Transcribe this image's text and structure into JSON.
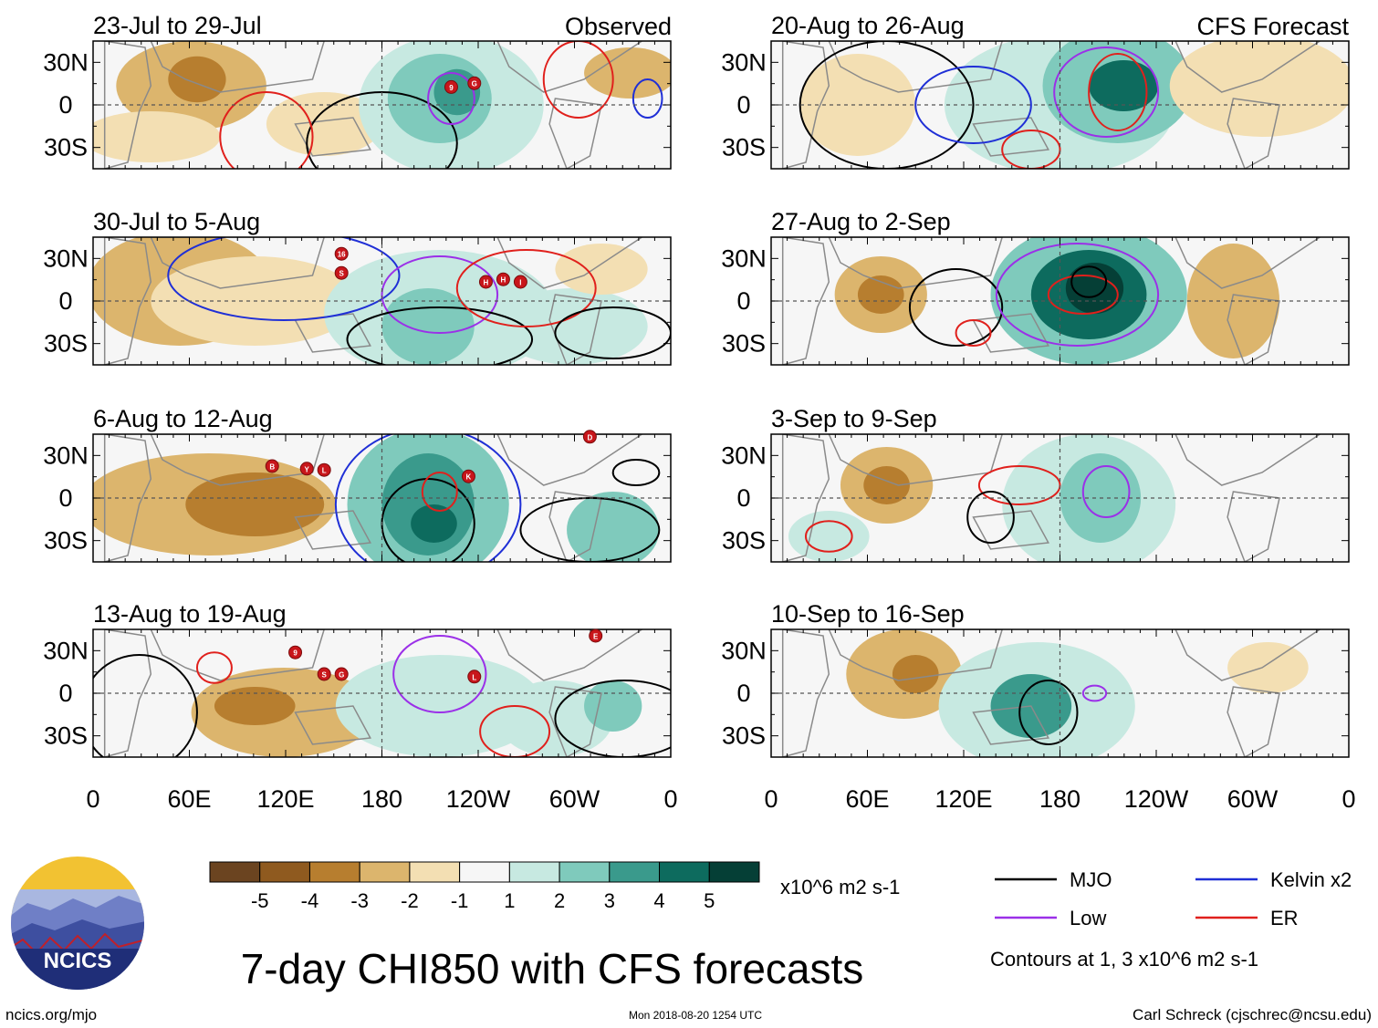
{
  "figure": {
    "main_title": "7-day CHI850 with CFS forecasts",
    "observed_label": "Observed",
    "forecast_label": "CFS Forecast",
    "units": "x10^6 m2 s-1",
    "contour_note": "Contours at 1, 3 x10^6 m2 s-1",
    "website": "ncics.org/mjo",
    "timestamp": "Mon 2018-08-20 1254 UTC",
    "credit": "Carl Schreck (cjschrec@ncsu.edu)",
    "logo_text": "NCICS"
  },
  "panels": [
    {
      "column": "observed",
      "title": "23-Jul to 29-Jul"
    },
    {
      "column": "observed",
      "title": "30-Jul to 5-Aug"
    },
    {
      "column": "observed",
      "title": "6-Aug to 12-Aug"
    },
    {
      "column": "observed",
      "title": "13-Aug to 19-Aug"
    },
    {
      "column": "forecast",
      "title": "20-Aug to 26-Aug"
    },
    {
      "column": "forecast",
      "title": "27-Aug to 2-Sep"
    },
    {
      "column": "forecast",
      "title": "3-Sep to 9-Sep"
    },
    {
      "column": "forecast",
      "title": "10-Sep to 16-Sep"
    }
  ],
  "axes": {
    "lat_ticks": [
      "30N",
      "0",
      "30S"
    ],
    "lon_ticks": [
      "0",
      "60E",
      "120E",
      "180",
      "120W",
      "60W",
      "0"
    ]
  },
  "colorbar": {
    "labels": [
      "-5",
      "-4",
      "-3",
      "-2",
      "-1",
      "1",
      "2",
      "3",
      "4",
      "5"
    ],
    "colors": [
      "#6b4420",
      "#8f5a1f",
      "#b77e2f",
      "#dcb56d",
      "#f3dfb3",
      "#f6f6f6",
      "#c7e9e1",
      "#7fcabc",
      "#3a9a8c",
      "#0d6b5e",
      "#053f36"
    ]
  },
  "legend": [
    {
      "label": "MJO",
      "color": "#000000"
    },
    {
      "label": "Kelvin x2",
      "color": "#1f2fd6"
    },
    {
      "label": "Low",
      "color": "#9b30e8"
    },
    {
      "label": "ER",
      "color": "#e0201c"
    }
  ],
  "storms": [
    {
      "panel": 0,
      "labels": [
        "9",
        "G"
      ]
    },
    {
      "panel": 1,
      "labels": [
        "16",
        "S",
        "H",
        "H",
        "I"
      ]
    },
    {
      "panel": 2,
      "labels": [
        "B",
        "Y",
        "L",
        "K",
        "D"
      ]
    },
    {
      "panel": 3,
      "labels": [
        "9",
        "S",
        "G",
        "L",
        "E"
      ]
    }
  ]
}
